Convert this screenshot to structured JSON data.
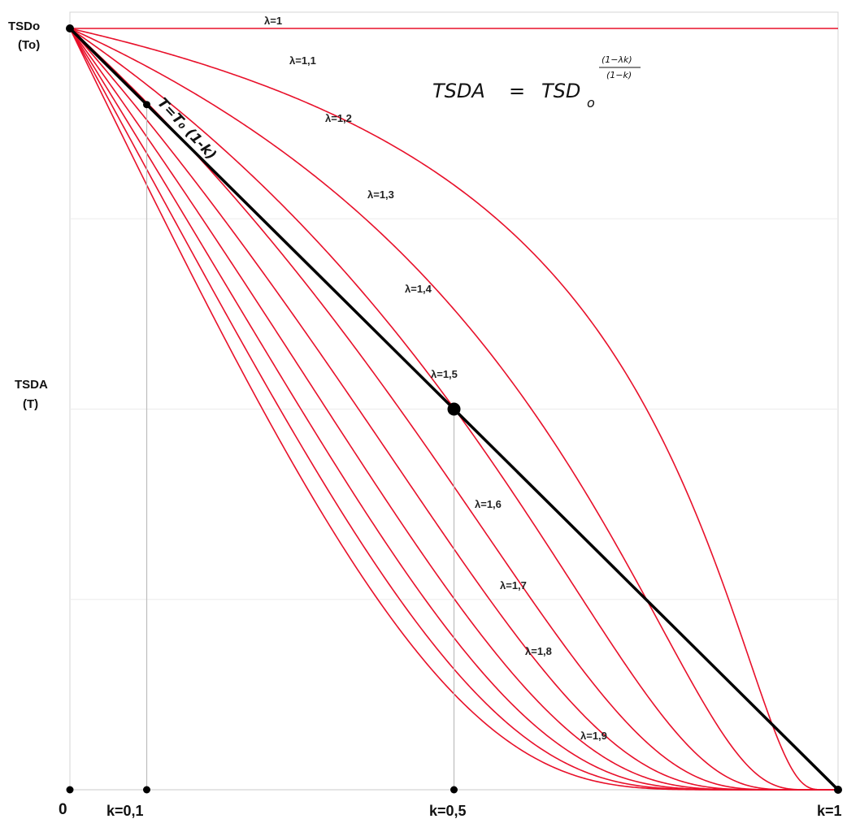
{
  "chart_data": {
    "type": "line",
    "y_top_label_1": "TSDo",
    "y_top_label_2": "(To)",
    "y_mid_label_1": "TSDA",
    "y_mid_label_2": "(T)",
    "x_origin_label": "0",
    "x_tick_labels": [
      "k=0,1",
      "k=0,5",
      "k=1"
    ],
    "x_ticks": [
      0.1,
      0.5,
      1.0
    ],
    "formula": {
      "lhs": "TSDA",
      "eq": "=",
      "base": "TSD",
      "base_sub": "o",
      "exp_num": "(1−λk)",
      "exp_den": "(1−k)"
    },
    "line_label": "T=T₀ (1-k)",
    "xlim": [
      0,
      1
    ],
    "ylim": [
      0,
      1
    ],
    "grid": true,
    "colors": {
      "curves": "#e8102a",
      "line": "#000000",
      "grid": "#d4d4d4"
    },
    "lambdas": [
      1,
      1.1,
      1.2,
      1.3,
      1.4,
      1.5,
      1.6,
      1.7,
      1.8,
      1.9
    ],
    "series": [
      {
        "name": "λ=1",
        "lambda": 1.0,
        "label": "λ=1"
      },
      {
        "name": "λ=1,1",
        "lambda": 1.1,
        "label": "λ=1,1"
      },
      {
        "name": "λ=1,2",
        "lambda": 1.2,
        "label": "λ=1,2"
      },
      {
        "name": "λ=1,3",
        "lambda": 1.3,
        "label": "λ=1,3"
      },
      {
        "name": "λ=1,4",
        "lambda": 1.4,
        "label": "λ=1,4"
      },
      {
        "name": "λ=1,5",
        "lambda": 1.5,
        "label": "λ=1,5"
      },
      {
        "name": "λ=1,6",
        "lambda": 1.6,
        "label": "λ=1,6"
      },
      {
        "name": "λ=1,7",
        "lambda": 1.7,
        "label": "λ=1,7"
      },
      {
        "name": "λ=1,8",
        "lambda": 1.8,
        "label": "λ=1,8"
      },
      {
        "name": "λ=1,9",
        "lambda": 1.9,
        "label": "λ=1,9"
      }
    ],
    "linear_points": [
      [
        0,
        1
      ],
      [
        0.1,
        0.9
      ],
      [
        0.5,
        0.5
      ],
      [
        1,
        0
      ]
    ]
  }
}
